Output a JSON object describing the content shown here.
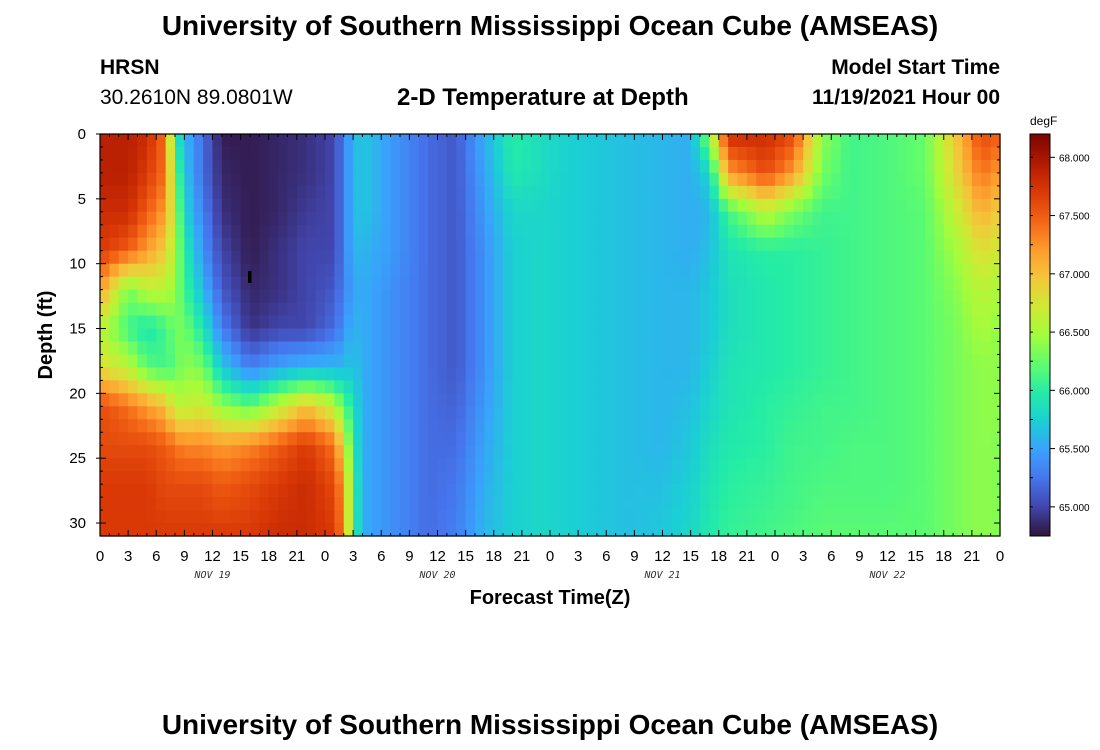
{
  "header": {
    "title": "University of Southern Mississippi Ocean Cube (AMSEAS)",
    "station": "HRSN",
    "coords": "30.2610N  89.0801W",
    "plot_title": "2-D Temperature at Depth",
    "start_label": "Model Start Time",
    "start_value": "11/19/2021 Hour 00"
  },
  "footer": {
    "title": "University of Southern Mississippi Ocean Cube (AMSEAS)"
  },
  "chart_data": {
    "type": "heatmap",
    "title": "2-D Temperature at Depth",
    "xlabel": "Forecast Time(Z)",
    "ylabel": "Depth (ft)",
    "xlim": [
      0,
      96
    ],
    "ylim": [
      31,
      0
    ],
    "x_tick_labels": [
      "0",
      "3",
      "6",
      "9",
      "12",
      "15",
      "18",
      "21",
      "0",
      "3",
      "6",
      "9",
      "12",
      "15",
      "18",
      "21",
      "0",
      "3",
      "6",
      "9",
      "12",
      "15",
      "18",
      "21",
      "0",
      "3",
      "6",
      "9",
      "12",
      "15",
      "18",
      "21",
      "0"
    ],
    "y_ticks": [
      0,
      5,
      10,
      15,
      20,
      25,
      30
    ],
    "day_labels": [
      "NOV 19",
      "NOV 20",
      "NOV 21",
      "NOV 22"
    ],
    "colorbar": {
      "units": "degF",
      "min": 64.75,
      "max": 68.2,
      "ticks": [
        "68.000",
        "67.500",
        "67.000",
        "66.500",
        "66.000",
        "65.500",
        "65.000"
      ],
      "colors": [
        "#30123b",
        "#4145ab",
        "#4675ed",
        "#39a2fc",
        "#1bcfd4",
        "#24eca6",
        "#61fc6c",
        "#a4fc3b",
        "#d1e834",
        "#f3c63a",
        "#fe9b2d",
        "#f36315",
        "#d93806",
        "#b11901",
        "#7a0402"
      ]
    },
    "depths": [
      0,
      3,
      6,
      9,
      12,
      15,
      18,
      21,
      24,
      27,
      31
    ],
    "profiles": [
      {
        "hour": 0,
        "temps": [
          67.9,
          67.9,
          67.8,
          67.7,
          67.2,
          66.6,
          66.8,
          67.6,
          67.6,
          67.7,
          67.7
        ]
      },
      {
        "hour": 3,
        "temps": [
          67.9,
          67.9,
          67.8,
          67.5,
          66.3,
          66.1,
          66.6,
          67.4,
          67.6,
          67.7,
          67.7
        ]
      },
      {
        "hour": 5,
        "temps": [
          67.8,
          67.7,
          67.5,
          67.2,
          66.6,
          65.9,
          66.2,
          67.2,
          67.6,
          67.7,
          67.7
        ]
      },
      {
        "hour": 7,
        "temps": [
          67.4,
          67.4,
          67.2,
          66.9,
          66.6,
          66.1,
          66.1,
          67.0,
          67.5,
          67.6,
          67.7
        ]
      },
      {
        "hour": 8,
        "temps": [
          66.0,
          66.3,
          66.5,
          66.5,
          66.4,
          66.3,
          66.2,
          66.6,
          67.4,
          67.6,
          67.7
        ]
      },
      {
        "hour": 9,
        "temps": [
          65.6,
          65.7,
          65.8,
          66.0,
          66.1,
          66.3,
          66.4,
          66.6,
          67.3,
          67.6,
          67.7
        ]
      },
      {
        "hour": 11,
        "temps": [
          65.2,
          65.2,
          65.3,
          65.4,
          65.6,
          65.9,
          66.3,
          66.7,
          67.3,
          67.6,
          67.7
        ]
      },
      {
        "hour": 13,
        "temps": [
          64.8,
          64.85,
          64.9,
          65.0,
          65.1,
          65.3,
          65.7,
          66.4,
          67.2,
          67.5,
          67.7
        ]
      },
      {
        "hour": 16,
        "temps": [
          64.8,
          64.8,
          64.8,
          64.8,
          64.85,
          64.9,
          65.3,
          66.2,
          67.3,
          67.6,
          67.7
        ]
      },
      {
        "hour": 19,
        "temps": [
          64.85,
          64.85,
          64.85,
          64.9,
          64.9,
          65.0,
          65.5,
          66.6,
          67.5,
          67.7,
          67.8
        ]
      },
      {
        "hour": 22,
        "temps": [
          64.9,
          64.9,
          64.95,
          65.0,
          65.0,
          65.0,
          65.6,
          67.0,
          67.7,
          67.8,
          67.8
        ]
      },
      {
        "hour": 25,
        "temps": [
          65.0,
          65.0,
          65.0,
          65.0,
          65.1,
          65.2,
          65.6,
          66.6,
          67.4,
          67.6,
          67.7
        ]
      },
      {
        "hour": 26,
        "temps": [
          65.3,
          65.3,
          65.3,
          65.3,
          65.3,
          65.4,
          65.6,
          66.2,
          66.8,
          67.2,
          67.3
        ]
      },
      {
        "hour": 27,
        "temps": [
          65.6,
          65.6,
          65.6,
          65.6,
          65.5,
          65.6,
          65.7,
          65.9,
          66.0,
          66.1,
          66.1
        ]
      },
      {
        "hour": 28,
        "temps": [
          65.7,
          65.7,
          65.7,
          65.6,
          65.55,
          65.55,
          65.55,
          65.55,
          65.55,
          65.55,
          65.55
        ]
      },
      {
        "hour": 31,
        "temps": [
          65.45,
          65.45,
          65.45,
          65.45,
          65.4,
          65.4,
          65.4,
          65.4,
          65.4,
          65.4,
          65.4
        ]
      },
      {
        "hour": 35,
        "temps": [
          65.2,
          65.2,
          65.2,
          65.2,
          65.2,
          65.2,
          65.2,
          65.2,
          65.2,
          65.2,
          65.2
        ]
      },
      {
        "hour": 38,
        "temps": [
          65.1,
          65.1,
          65.1,
          65.1,
          65.1,
          65.1,
          65.1,
          65.15,
          65.2,
          65.25,
          65.3
        ]
      },
      {
        "hour": 41,
        "temps": [
          65.55,
          65.5,
          65.45,
          65.4,
          65.4,
          65.4,
          65.4,
          65.45,
          65.5,
          65.55,
          65.6
        ]
      },
      {
        "hour": 44,
        "temps": [
          66.0,
          65.95,
          65.8,
          65.75,
          65.75,
          65.75,
          65.75,
          65.75,
          65.75,
          65.75,
          65.75
        ]
      },
      {
        "hour": 47,
        "temps": [
          65.85,
          65.85,
          65.8,
          65.8,
          65.8,
          65.8,
          65.8,
          65.8,
          65.8,
          65.8,
          65.8
        ]
      },
      {
        "hour": 50,
        "temps": [
          65.75,
          65.75,
          65.75,
          65.75,
          65.75,
          65.75,
          65.75,
          65.75,
          65.75,
          65.75,
          65.75
        ]
      },
      {
        "hour": 56,
        "temps": [
          65.65,
          65.65,
          65.65,
          65.65,
          65.65,
          65.65,
          65.65,
          65.65,
          65.65,
          65.65,
          65.65
        ]
      },
      {
        "hour": 60,
        "temps": [
          65.6,
          65.6,
          65.6,
          65.6,
          65.6,
          65.6,
          65.6,
          65.6,
          65.6,
          65.65,
          65.7
        ]
      },
      {
        "hour": 63,
        "temps": [
          65.55,
          65.55,
          65.55,
          65.55,
          65.6,
          65.6,
          65.6,
          65.65,
          65.7,
          65.75,
          65.8
        ]
      },
      {
        "hour": 65,
        "temps": [
          66.4,
          65.8,
          65.6,
          65.65,
          65.7,
          65.7,
          65.75,
          65.8,
          65.85,
          65.9,
          65.95
        ]
      },
      {
        "hour": 67,
        "temps": [
          67.8,
          67.2,
          66.1,
          65.9,
          65.85,
          65.85,
          65.9,
          65.9,
          65.95,
          66.0,
          66.05
        ]
      },
      {
        "hour": 71,
        "temps": [
          67.8,
          67.6,
          66.6,
          66.0,
          65.95,
          65.95,
          65.95,
          66.0,
          66.0,
          66.05,
          66.1
        ]
      },
      {
        "hour": 74,
        "temps": [
          67.6,
          67.2,
          66.3,
          66.0,
          66.0,
          66.0,
          66.0,
          66.05,
          66.1,
          66.1,
          66.15
        ]
      },
      {
        "hour": 77,
        "temps": [
          66.4,
          66.3,
          66.1,
          66.05,
          66.05,
          66.05,
          66.05,
          66.1,
          66.1,
          66.15,
          66.2
        ]
      },
      {
        "hour": 80,
        "temps": [
          66.1,
          66.1,
          66.1,
          66.1,
          66.1,
          66.1,
          66.1,
          66.1,
          66.15,
          66.15,
          66.2
        ]
      },
      {
        "hour": 84,
        "temps": [
          66.15,
          66.15,
          66.15,
          66.15,
          66.15,
          66.15,
          66.15,
          66.15,
          66.15,
          66.15,
          66.2
        ]
      },
      {
        "hour": 88,
        "temps": [
          66.25,
          66.25,
          66.2,
          66.2,
          66.2,
          66.2,
          66.2,
          66.2,
          66.2,
          66.2,
          66.2
        ]
      },
      {
        "hour": 91,
        "temps": [
          66.9,
          66.8,
          66.6,
          66.45,
          66.35,
          66.3,
          66.3,
          66.3,
          66.3,
          66.3,
          66.3
        ]
      },
      {
        "hour": 94,
        "temps": [
          67.6,
          67.4,
          67.1,
          66.8,
          66.6,
          66.5,
          66.4,
          66.4,
          66.4,
          66.4,
          66.4
        ]
      },
      {
        "hour": 96,
        "temps": [
          67.5,
          67.2,
          66.9,
          66.7,
          66.5,
          66.4,
          66.4,
          66.4,
          66.35,
          66.35,
          66.35
        ]
      }
    ]
  }
}
